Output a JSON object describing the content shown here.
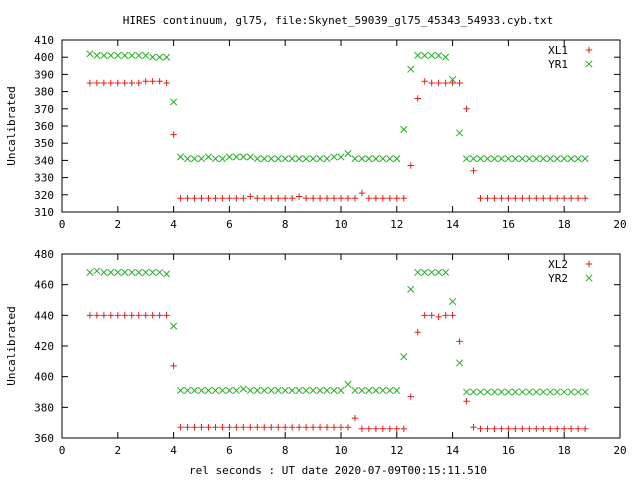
{
  "title": "HIRES continuum, gl75, file:Skynet_59039_gl75_45343_54933.cyb.txt",
  "xlabel": "rel seconds : UT date 2020-07-09T00:15:11.510",
  "colors": {
    "red": "#e0201a",
    "green": "#20b020",
    "frame": "#000000"
  },
  "chart_data": [
    {
      "type": "scatter",
      "ylabel": "Uncalibrated",
      "xlim": [
        0,
        20
      ],
      "ylim": [
        310,
        410
      ],
      "xticks": [
        0,
        2,
        4,
        6,
        8,
        10,
        12,
        14,
        16,
        18,
        20
      ],
      "yticks": [
        310,
        320,
        330,
        340,
        350,
        360,
        370,
        380,
        390,
        400,
        410
      ],
      "legend_position": "top-right",
      "series": [
        {
          "name": "XL1",
          "marker": "plus",
          "color": "#e0201a",
          "x": [
            1.0,
            1.25,
            1.5,
            1.75,
            2.0,
            2.25,
            2.5,
            2.75,
            3.0,
            3.25,
            3.5,
            3.75,
            4.0,
            4.25,
            4.5,
            4.75,
            5.0,
            5.25,
            5.5,
            5.75,
            6.0,
            6.25,
            6.5,
            6.75,
            7.0,
            7.25,
            7.5,
            7.75,
            8.0,
            8.25,
            8.5,
            8.75,
            9.0,
            9.25,
            9.5,
            9.75,
            10.0,
            10.25,
            10.5,
            10.75,
            11.0,
            11.25,
            11.5,
            11.75,
            12.0,
            12.25,
            12.5,
            12.75,
            13.0,
            13.25,
            13.5,
            13.75,
            14.0,
            14.25,
            14.5,
            14.75,
            15.0,
            15.25,
            15.5,
            15.75,
            16.0,
            16.25,
            16.5,
            16.75,
            17.0,
            17.25,
            17.5,
            17.75,
            18.0,
            18.25,
            18.5,
            18.75
          ],
          "y": [
            385,
            385,
            385,
            385,
            385,
            385,
            385,
            385,
            386,
            386,
            386,
            385,
            355,
            318,
            318,
            318,
            318,
            318,
            318,
            318,
            318,
            318,
            318,
            319,
            318,
            318,
            318,
            318,
            318,
            318,
            319,
            318,
            318,
            318,
            318,
            318,
            318,
            318,
            318,
            321,
            318,
            318,
            318,
            318,
            318,
            318,
            337,
            376,
            386,
            385,
            385,
            385,
            385,
            385,
            370,
            334,
            318,
            318,
            318,
            318,
            318,
            318,
            318,
            318,
            318,
            318,
            318,
            318,
            318,
            318,
            318,
            318
          ]
        },
        {
          "name": "YR1",
          "marker": "cross",
          "color": "#20b020",
          "x": [
            1.0,
            1.25,
            1.5,
            1.75,
            2.0,
            2.25,
            2.5,
            2.75,
            3.0,
            3.25,
            3.5,
            3.75,
            4.0,
            4.25,
            4.5,
            4.75,
            5.0,
            5.25,
            5.5,
            5.75,
            6.0,
            6.25,
            6.5,
            6.75,
            7.0,
            7.25,
            7.5,
            7.75,
            8.0,
            8.25,
            8.5,
            8.75,
            9.0,
            9.25,
            9.5,
            9.75,
            10.0,
            10.25,
            10.5,
            10.75,
            11.0,
            11.25,
            11.5,
            11.75,
            12.0,
            12.25,
            12.5,
            12.75,
            13.0,
            13.25,
            13.5,
            13.75,
            14.0,
            14.25,
            14.5,
            14.75,
            15.0,
            15.25,
            15.5,
            15.75,
            16.0,
            16.25,
            16.5,
            16.75,
            17.0,
            17.25,
            17.5,
            17.75,
            18.0,
            18.25,
            18.5,
            18.75
          ],
          "y": [
            402,
            401,
            401,
            401,
            401,
            401,
            401,
            401,
            401,
            400,
            400,
            400,
            374,
            342,
            341,
            341,
            341,
            342,
            341,
            341,
            342,
            342,
            342,
            342,
            341,
            341,
            341,
            341,
            341,
            341,
            341,
            341,
            341,
            341,
            341,
            342,
            342,
            344,
            341,
            341,
            341,
            341,
            341,
            341,
            341,
            358,
            393,
            401,
            401,
            401,
            401,
            400,
            387,
            356,
            341,
            341,
            341,
            341,
            341,
            341,
            341,
            341,
            341,
            341,
            341,
            341,
            341,
            341,
            341,
            341,
            341,
            341
          ]
        }
      ]
    },
    {
      "type": "scatter",
      "ylabel": "Uncalibrated",
      "xlim": [
        0,
        20
      ],
      "ylim": [
        360,
        480
      ],
      "xticks": [
        0,
        2,
        4,
        6,
        8,
        10,
        12,
        14,
        16,
        18,
        20
      ],
      "yticks": [
        360,
        380,
        400,
        420,
        440,
        460,
        480
      ],
      "legend_position": "top-right",
      "series": [
        {
          "name": "XL2",
          "marker": "plus",
          "color": "#e0201a",
          "x": [
            1.0,
            1.25,
            1.5,
            1.75,
            2.0,
            2.25,
            2.5,
            2.75,
            3.0,
            3.25,
            3.5,
            3.75,
            4.0,
            4.25,
            4.5,
            4.75,
            5.0,
            5.25,
            5.5,
            5.75,
            6.0,
            6.25,
            6.5,
            6.75,
            7.0,
            7.25,
            7.5,
            7.75,
            8.0,
            8.25,
            8.5,
            8.75,
            9.0,
            9.25,
            9.5,
            9.75,
            10.0,
            10.25,
            10.5,
            10.75,
            11.0,
            11.25,
            11.5,
            11.75,
            12.0,
            12.25,
            12.5,
            12.75,
            13.0,
            13.25,
            13.5,
            13.75,
            14.0,
            14.25,
            14.5,
            14.75,
            15.0,
            15.25,
            15.5,
            15.75,
            16.0,
            16.25,
            16.5,
            16.75,
            17.0,
            17.25,
            17.5,
            17.75,
            18.0,
            18.25,
            18.5,
            18.75
          ],
          "y": [
            440,
            440,
            440,
            440,
            440,
            440,
            440,
            440,
            440,
            440,
            440,
            440,
            407,
            367,
            367,
            367,
            367,
            367,
            367,
            367,
            367,
            367,
            367,
            367,
            367,
            367,
            367,
            367,
            367,
            367,
            367,
            367,
            367,
            367,
            367,
            367,
            367,
            367,
            373,
            366,
            366,
            366,
            366,
            366,
            366,
            366,
            387,
            429,
            440,
            440,
            439,
            440,
            440,
            423,
            384,
            367,
            366,
            366,
            366,
            366,
            366,
            366,
            366,
            366,
            366,
            366,
            366,
            366,
            366,
            366,
            366,
            366
          ]
        },
        {
          "name": "YR2",
          "marker": "cross",
          "color": "#20b020",
          "x": [
            1.0,
            1.25,
            1.5,
            1.75,
            2.0,
            2.25,
            2.5,
            2.75,
            3.0,
            3.25,
            3.5,
            3.75,
            4.0,
            4.25,
            4.5,
            4.75,
            5.0,
            5.25,
            5.5,
            5.75,
            6.0,
            6.25,
            6.5,
            6.75,
            7.0,
            7.25,
            7.5,
            7.75,
            8.0,
            8.25,
            8.5,
            8.75,
            9.0,
            9.25,
            9.5,
            9.75,
            10.0,
            10.25,
            10.5,
            10.75,
            11.0,
            11.25,
            11.5,
            11.75,
            12.0,
            12.25,
            12.5,
            12.75,
            13.0,
            13.25,
            13.5,
            13.75,
            14.0,
            14.25,
            14.5,
            14.75,
            15.0,
            15.25,
            15.5,
            15.75,
            16.0,
            16.25,
            16.5,
            16.75,
            17.0,
            17.25,
            17.5,
            17.75,
            18.0,
            18.25,
            18.5,
            18.75
          ],
          "y": [
            468,
            469,
            468,
            468,
            468,
            468,
            468,
            468,
            468,
            468,
            468,
            467,
            433,
            391,
            391,
            391,
            391,
            391,
            391,
            391,
            391,
            391,
            392,
            391,
            391,
            391,
            391,
            391,
            391,
            391,
            391,
            391,
            391,
            391,
            391,
            391,
            391,
            395,
            391,
            391,
            391,
            391,
            391,
            391,
            391,
            413,
            457,
            468,
            468,
            468,
            468,
            468,
            449,
            409,
            390,
            390,
            390,
            390,
            390,
            390,
            390,
            390,
            390,
            390,
            390,
            390,
            390,
            390,
            390,
            390,
            390,
            390
          ]
        }
      ]
    }
  ]
}
